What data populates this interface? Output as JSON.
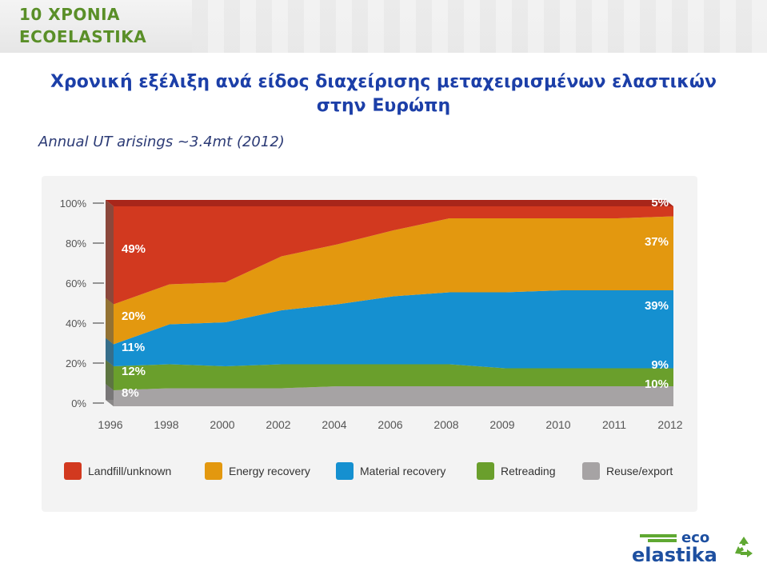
{
  "header": {
    "badge_line1": "10 ΧΡΟΝΙΑ",
    "badge_line2": "ECOELASTIKA"
  },
  "title_line1": "Χρονική εξέλιξη ανά είδος διαχείρισης μεταχειρισμένων ελαστικών",
  "title_line2": "στην Ευρώπη",
  "subtitle": "Annual UT arisings ~3.4mt (2012)",
  "logo": {
    "top": "eco",
    "bottom": "elastika",
    "icon": "recycle-icon"
  },
  "chart_data": {
    "type": "area",
    "stacked": true,
    "x": [
      "1996",
      "1998",
      "2000",
      "2002",
      "2004",
      "2006",
      "2008",
      "2009",
      "2010",
      "2011",
      "2012"
    ],
    "yticks": [
      "0%",
      "20%",
      "40%",
      "60%",
      "80%",
      "100%"
    ],
    "ylim": [
      0,
      100
    ],
    "series": [
      {
        "name": "Reuse/export",
        "color": "#a6a3a4",
        "values": [
          8,
          9,
          9,
          9,
          10,
          10,
          10,
          10,
          10,
          10,
          10
        ]
      },
      {
        "name": "Retreading",
        "color": "#6a9f2c",
        "values": [
          12,
          12,
          11,
          12,
          11,
          11,
          11,
          9,
          9,
          9,
          9
        ]
      },
      {
        "name": "Material recovery",
        "color": "#1590d0",
        "values": [
          11,
          20,
          22,
          27,
          30,
          34,
          36,
          38,
          39,
          39,
          39
        ]
      },
      {
        "name": "Energy recovery",
        "color": "#e3980f",
        "values": [
          20,
          20,
          20,
          27,
          30,
          33,
          37,
          37,
          36,
          36,
          37
        ]
      },
      {
        "name": "Landfill/unknown",
        "color": "#d2391f",
        "values": [
          49,
          39,
          38,
          25,
          19,
          12,
          6,
          6,
          6,
          6,
          5
        ]
      }
    ],
    "labels_start": [
      "8%",
      "12%",
      "11%",
      "20%",
      "49%"
    ],
    "labels_end": [
      "10%",
      "9%",
      "39%",
      "37%",
      "5%"
    ],
    "legend": [
      "Landfill/unknown",
      "Energy recovery",
      "Material recovery",
      "Retreading",
      "Reuse/export"
    ],
    "legend_colors": [
      "#d2391f",
      "#e3980f",
      "#1590d0",
      "#6a9f2c",
      "#a6a3a4"
    ],
    "legend_position": "bottom"
  }
}
